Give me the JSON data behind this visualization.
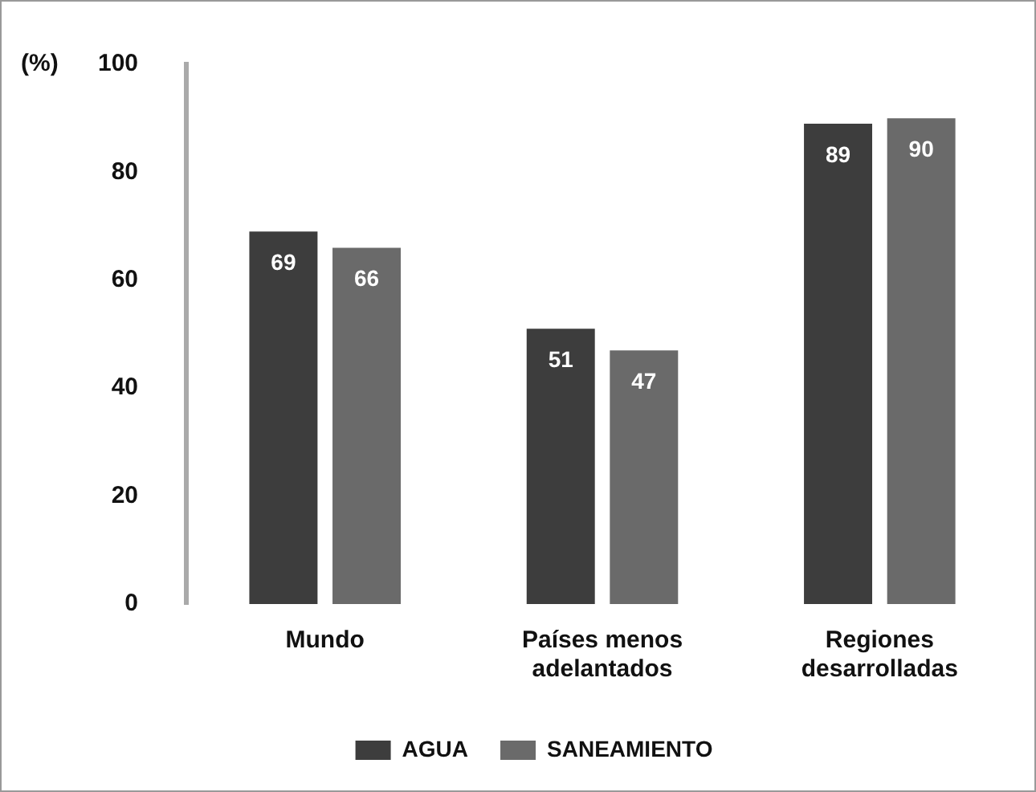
{
  "chart_data": {
    "type": "bar",
    "ylabel": "(%)",
    "categories": [
      "Mundo",
      "Países menos adelantados",
      "Regiones desarrolladas"
    ],
    "series": [
      {
        "name": "AGUA",
        "color": "#3d3d3d",
        "values": [
          69,
          51,
          89
        ]
      },
      {
        "name": "SANEAMIENTO",
        "color": "#6a6a6a",
        "values": [
          66,
          47,
          90
        ]
      }
    ],
    "ylim": [
      0,
      100
    ],
    "yticks": [
      0,
      20,
      40,
      60,
      80,
      100
    ],
    "grid": false,
    "legend": "bottom",
    "data_labels": true
  }
}
